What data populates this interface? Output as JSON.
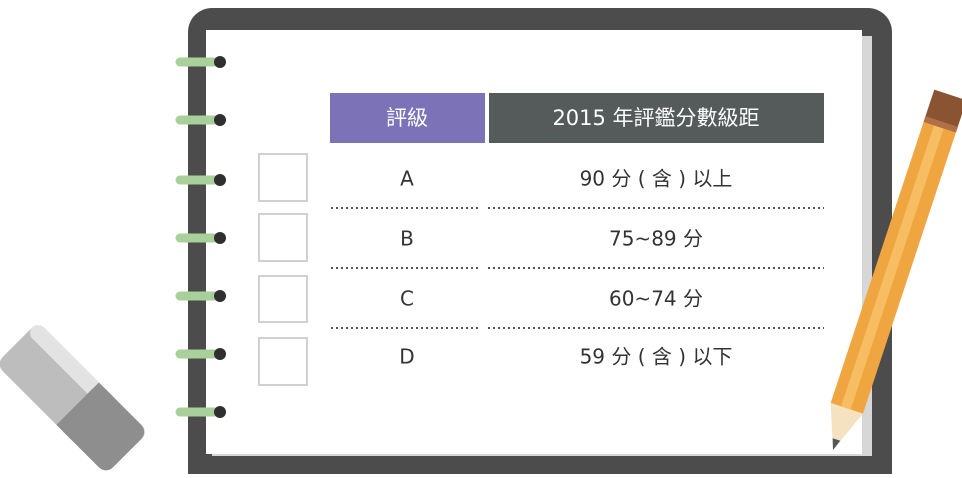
{
  "table": {
    "header": [
      "評級",
      "2015 年評鑑分數級距"
    ],
    "rows": [
      [
        "A",
        "90 分 ( 含 ) 以上"
      ],
      [
        "B",
        "75~89 分"
      ],
      [
        "C",
        "60~74 分"
      ],
      [
        "D",
        "59 分 ( 含 ) 以下"
      ]
    ]
  }
}
